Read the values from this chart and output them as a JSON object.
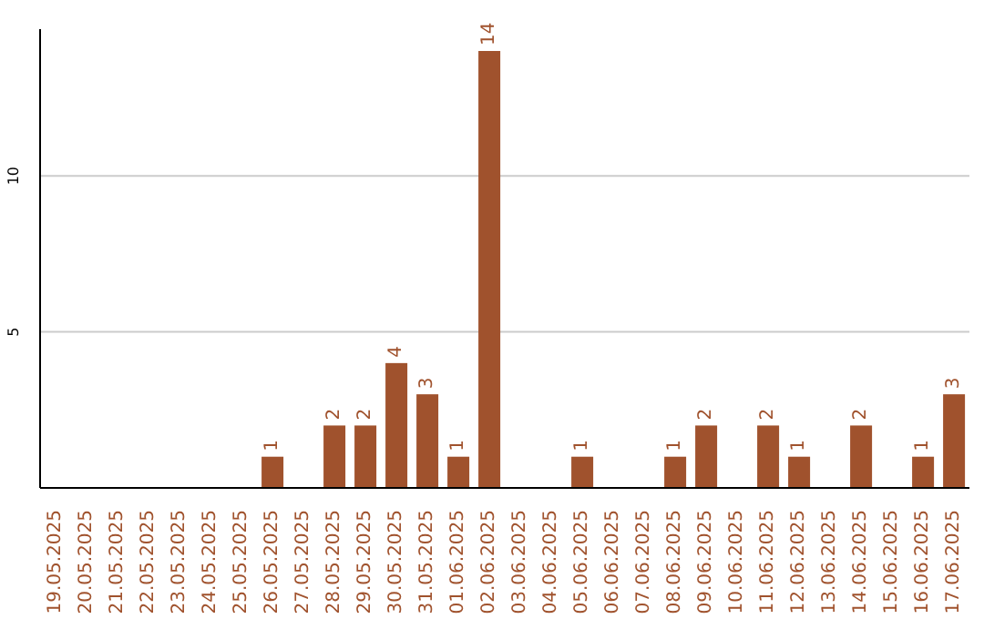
{
  "chart_data": {
    "type": "bar",
    "categories": [
      "19.05.2025",
      "20.05.2025",
      "21.05.2025",
      "22.05.2025",
      "23.05.2025",
      "24.05.2025",
      "25.05.2025",
      "26.05.2025",
      "27.05.2025",
      "28.05.2025",
      "29.05.2025",
      "30.05.2025",
      "31.05.2025",
      "01.06.2025",
      "02.06.2025",
      "03.06.2025",
      "04.06.2025",
      "05.06.2025",
      "06.06.2025",
      "07.06.2025",
      "08.06.2025",
      "09.06.2025",
      "10.06.2025",
      "11.06.2025",
      "12.06.2025",
      "13.06.2025",
      "14.06.2025",
      "15.06.2025",
      "16.06.2025",
      "17.06.2025"
    ],
    "values": [
      0,
      0,
      0,
      0,
      0,
      0,
      0,
      1,
      0,
      2,
      2,
      4,
      3,
      1,
      14,
      0,
      0,
      1,
      0,
      0,
      1,
      2,
      0,
      2,
      1,
      0,
      2,
      0,
      1,
      3
    ],
    "value_labels": [
      null,
      null,
      null,
      null,
      null,
      null,
      null,
      "1",
      null,
      "2",
      "2",
      "4",
      "3",
      "1",
      "14",
      null,
      null,
      "1",
      null,
      null,
      "1",
      "2",
      null,
      "2",
      "1",
      null,
      "2",
      null,
      "1",
      "3"
    ],
    "color": "#a0522d",
    "ylim": [
      0,
      14.7
    ],
    "yticks": [
      5,
      10
    ],
    "grid": "y"
  }
}
